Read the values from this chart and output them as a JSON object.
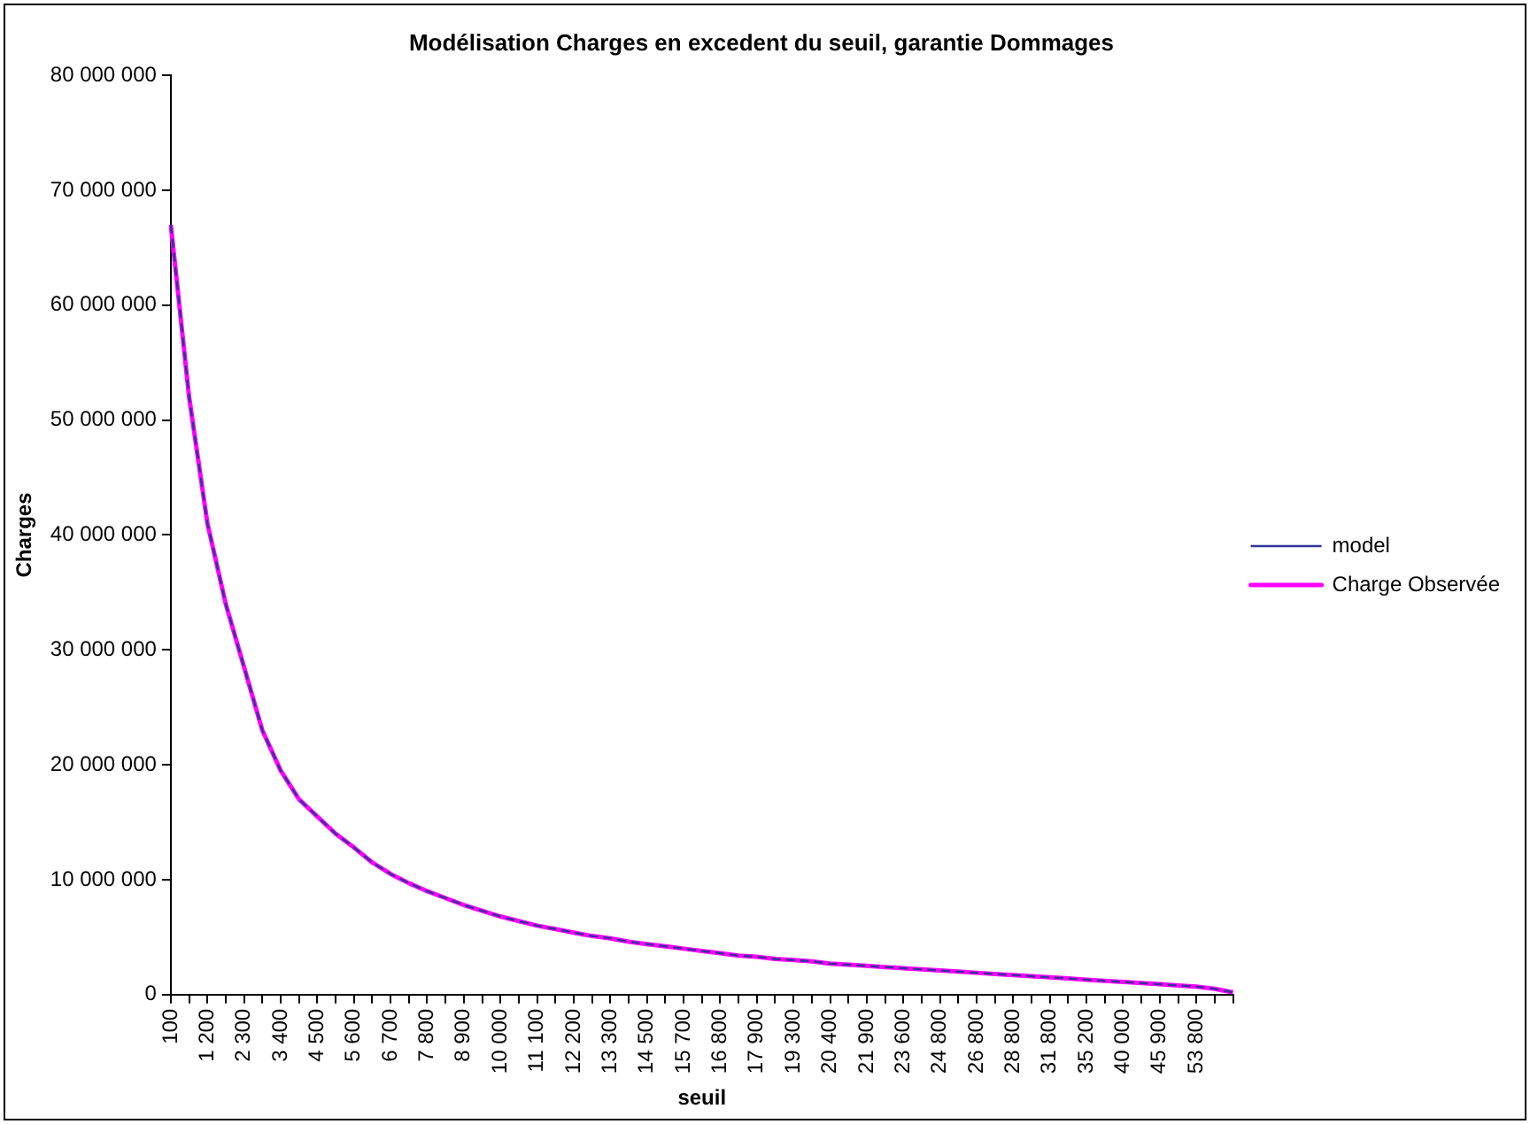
{
  "chart_data": {
    "type": "line",
    "title": "Modélisation Charges en excedent du seuil, garantie Dommages",
    "xlabel": "seuil",
    "ylabel": "Charges",
    "categories": [
      "100",
      null,
      "1 200",
      null,
      "2 300",
      null,
      "3 400",
      null,
      "4 500",
      null,
      "5 600",
      null,
      "6 700",
      null,
      "7 800",
      null,
      "8 900",
      null,
      "10 000",
      null,
      "11 100",
      null,
      "12 200",
      null,
      "13 300",
      null,
      "14 500",
      null,
      "15 700",
      null,
      "16 800",
      null,
      "17 900",
      null,
      "19 300",
      null,
      "20 400",
      null,
      "21 900",
      null,
      "23 600",
      null,
      "24 800",
      null,
      "26 800",
      null,
      "28 800",
      null,
      "31 800",
      null,
      "35 200",
      null,
      "40 000",
      null,
      "45 900",
      null,
      "53 800",
      null,
      null
    ],
    "series": [
      {
        "name": "model",
        "color": "#333399",
        "line_style": "dashed",
        "values": [
          67000000,
          52000000,
          41000000,
          34000000,
          28500000,
          23000000,
          19500000,
          17000000,
          15500000,
          14000000,
          12800000,
          11500000,
          10500000,
          9700000,
          9000000,
          8400000,
          7800000,
          7300000,
          6800000,
          6400000,
          6000000,
          5700000,
          5400000,
          5100000,
          4900000,
          4600000,
          4400000,
          4200000,
          4000000,
          3800000,
          3600000,
          3400000,
          3300000,
          3100000,
          3000000,
          2900000,
          2700000,
          2600000,
          2500000,
          2400000,
          2300000,
          2200000,
          2100000,
          2000000,
          1900000,
          1800000,
          1700000,
          1600000,
          1500000,
          1400000,
          1300000,
          1200000,
          1100000,
          1000000,
          900000,
          800000,
          700000,
          500000,
          200000
        ]
      },
      {
        "name": "Charge Observée",
        "color": "#ff00ff",
        "line_style": "solid",
        "values": [
          67000000,
          52000000,
          41000000,
          34000000,
          28500000,
          23000000,
          19500000,
          17000000,
          15500000,
          14000000,
          12800000,
          11500000,
          10500000,
          9700000,
          9000000,
          8400000,
          7800000,
          7300000,
          6800000,
          6400000,
          6000000,
          5700000,
          5400000,
          5100000,
          4900000,
          4600000,
          4400000,
          4200000,
          4000000,
          3800000,
          3600000,
          3400000,
          3300000,
          3100000,
          3000000,
          2900000,
          2700000,
          2600000,
          2500000,
          2400000,
          2300000,
          2200000,
          2100000,
          2000000,
          1900000,
          1800000,
          1700000,
          1600000,
          1500000,
          1400000,
          1300000,
          1200000,
          1100000,
          1000000,
          900000,
          800000,
          700000,
          500000,
          200000
        ]
      }
    ],
    "ylim": [
      0,
      80000000
    ],
    "yticks": [
      {
        "value": 0,
        "label": "0"
      },
      {
        "value": 10000000,
        "label": "10 000 000"
      },
      {
        "value": 20000000,
        "label": "20 000 000"
      },
      {
        "value": 30000000,
        "label": "30 000 000"
      },
      {
        "value": 40000000,
        "label": "40 000 000"
      },
      {
        "value": 50000000,
        "label": "50 000 000"
      },
      {
        "value": 60000000,
        "label": "60 000 000"
      },
      {
        "value": 70000000,
        "label": "70 000 000"
      },
      {
        "value": 80000000,
        "label": "80 000 000"
      }
    ],
    "grid": false,
    "legend": "right",
    "marker": "none"
  }
}
